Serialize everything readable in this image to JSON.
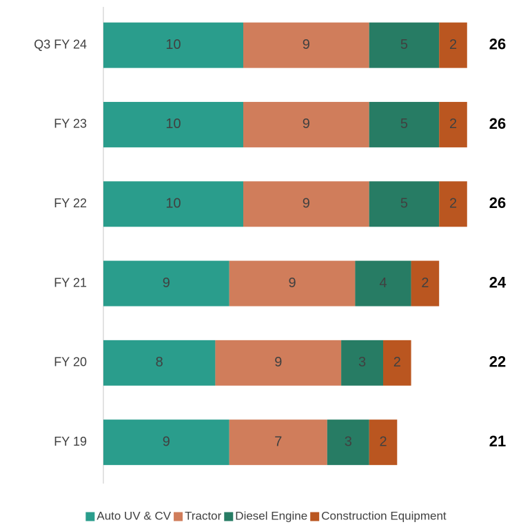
{
  "chart_data": {
    "type": "stacked_barh",
    "categories": [
      "Q3 FY 24",
      "FY 23",
      "FY 22",
      "FY 21",
      "FY 20",
      "FY 19"
    ],
    "series": [
      {
        "name": "Auto UV & CV",
        "color": "#2a9d8c",
        "values": [
          10,
          10,
          10,
          9,
          8,
          9
        ]
      },
      {
        "name": "Tractor",
        "color": "#d07d5b",
        "values": [
          9,
          9,
          9,
          9,
          9,
          7
        ]
      },
      {
        "name": "Diesel Engine",
        "color": "#277c64",
        "values": [
          5,
          5,
          5,
          4,
          3,
          3
        ]
      },
      {
        "name": "Construction Equipment",
        "color": "#ba5620",
        "values": [
          2,
          2,
          2,
          2,
          2,
          2
        ]
      }
    ],
    "totals": [
      26,
      26,
      26,
      24,
      22,
      21
    ],
    "xlim": [
      0,
      30
    ],
    "legend": "bottom"
  }
}
